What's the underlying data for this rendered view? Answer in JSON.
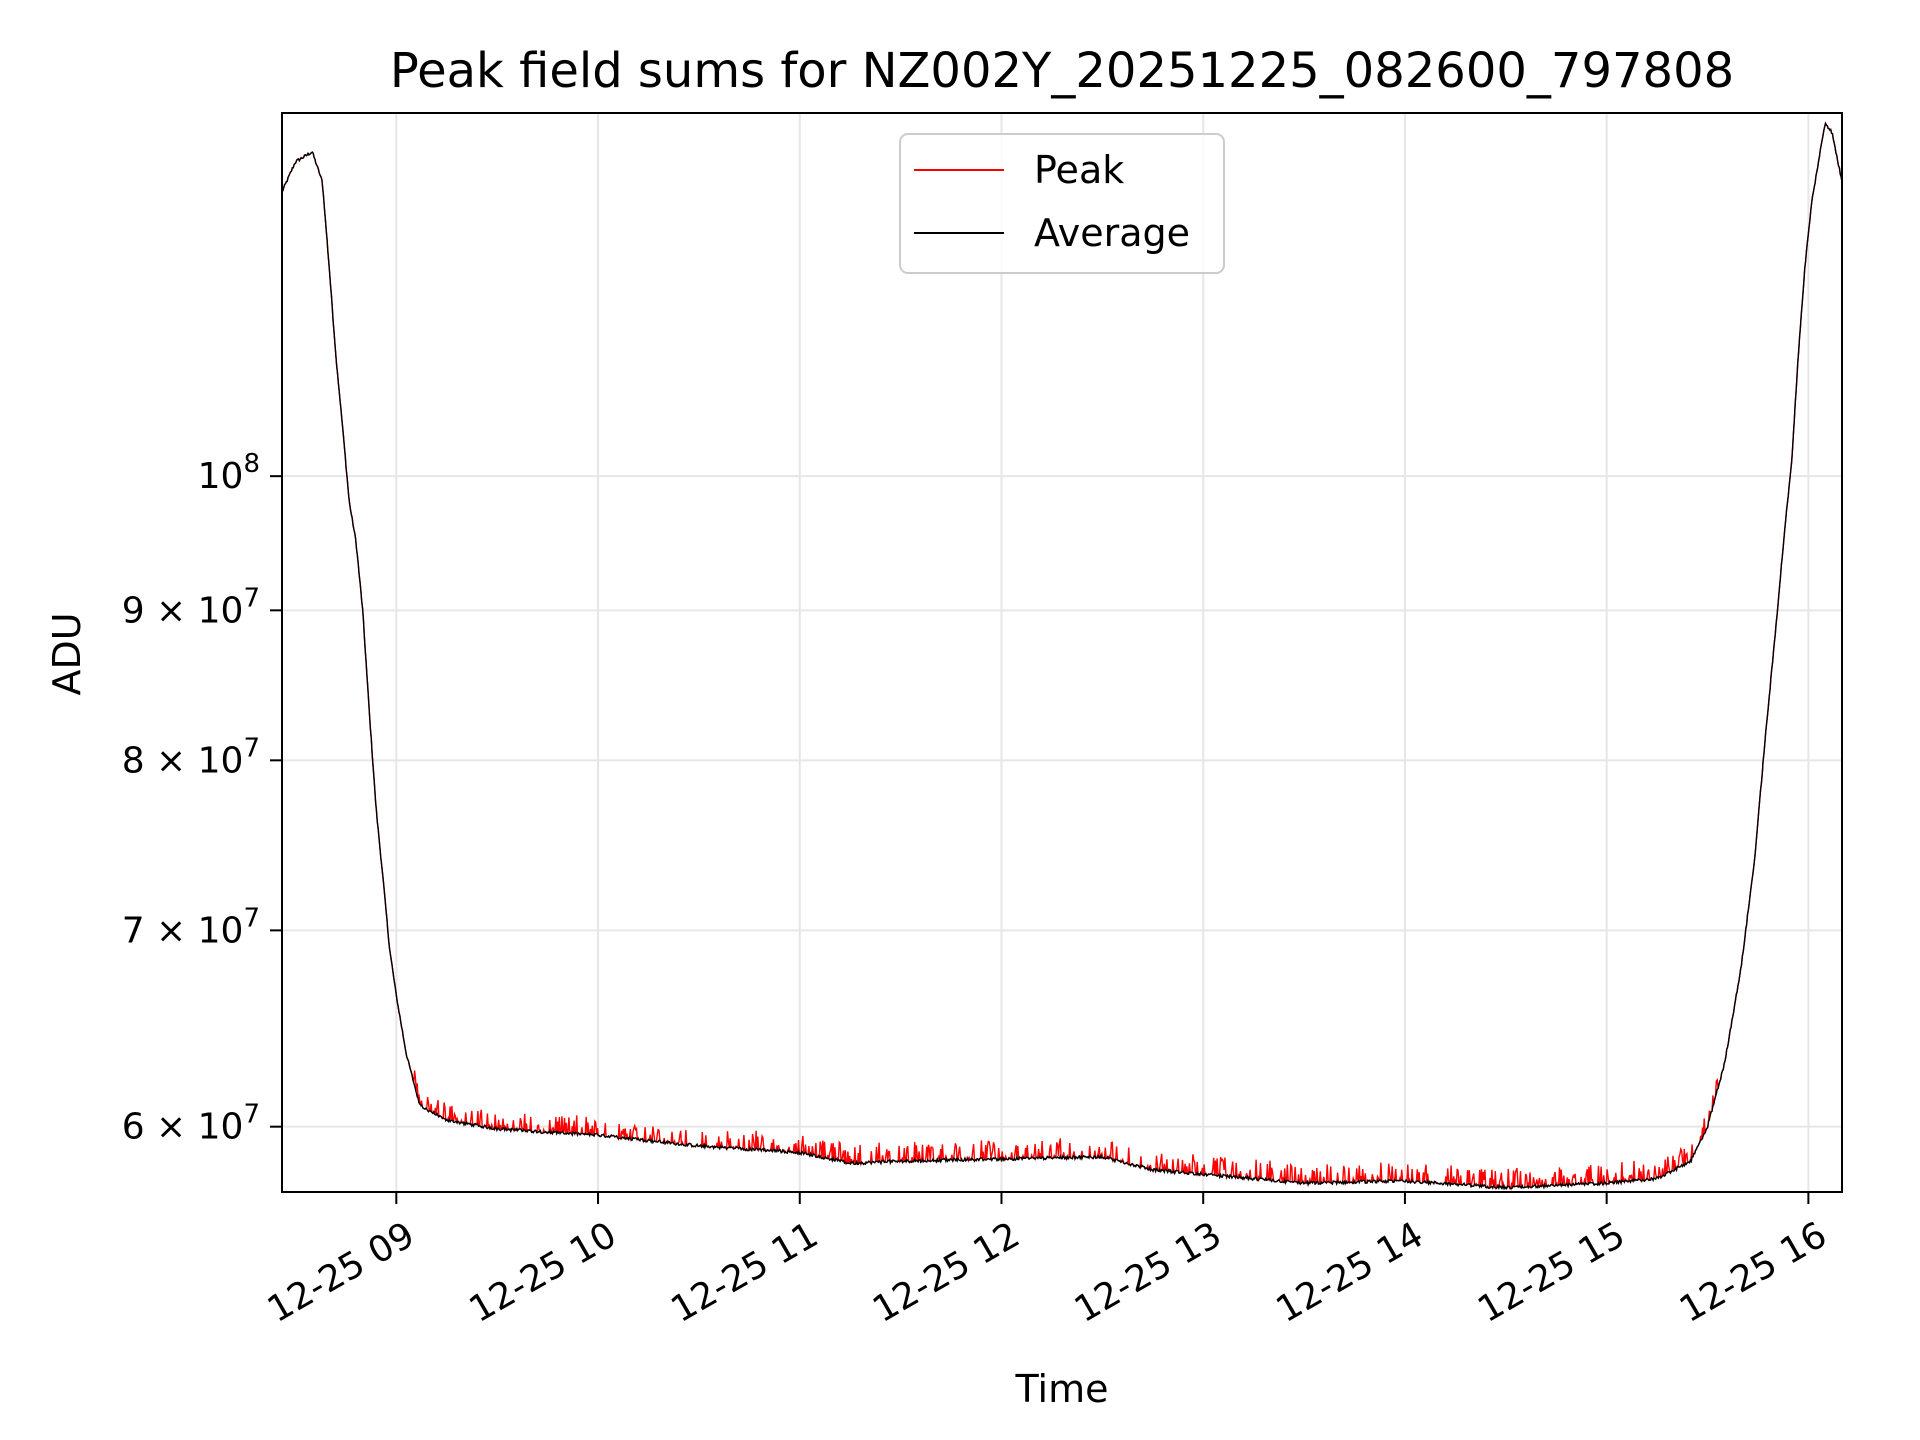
{
  "chart_data": {
    "type": "line",
    "title": "Peak field sums for NZ002Y_20251225_082600_797808",
    "xlabel": "Time",
    "ylabel": "ADU",
    "y_scale": "log",
    "grid": true,
    "legend_position": "top-center",
    "xlim": [
      "2025-12-25 08:26",
      "2025-12-25 16:10"
    ],
    "ylim": [
      57000000,
      133000000
    ],
    "x_ticks": [
      {
        "value": "2025-12-25 09:00",
        "label": "12-25 09"
      },
      {
        "value": "2025-12-25 10:00",
        "label": "12-25 10"
      },
      {
        "value": "2025-12-25 11:00",
        "label": "12-25 11"
      },
      {
        "value": "2025-12-25 12:00",
        "label": "12-25 12"
      },
      {
        "value": "2025-12-25 13:00",
        "label": "12-25 13"
      },
      {
        "value": "2025-12-25 14:00",
        "label": "12-25 14"
      },
      {
        "value": "2025-12-25 15:00",
        "label": "12-25 15"
      },
      {
        "value": "2025-12-25 16:00",
        "label": "12-25 16"
      }
    ],
    "y_ticks": [
      {
        "value": 60000000,
        "base": "6",
        "exp": "7"
      },
      {
        "value": 70000000,
        "base": "7",
        "exp": "7"
      },
      {
        "value": 80000000,
        "base": "8",
        "exp": "7"
      },
      {
        "value": 90000000,
        "base": "9",
        "exp": "7"
      },
      {
        "value": 100000000,
        "base": "",
        "exp": "8"
      }
    ],
    "x": [
      "2025-12-25 08:26",
      "2025-12-25 08:30",
      "2025-12-25 08:35",
      "2025-12-25 08:38",
      "2025-12-25 08:40",
      "2025-12-25 08:42",
      "2025-12-25 08:44",
      "2025-12-25 08:46",
      "2025-12-25 08:48",
      "2025-12-25 08:50",
      "2025-12-25 08:52",
      "2025-12-25 08:54",
      "2025-12-25 08:56",
      "2025-12-25 08:58",
      "2025-12-25 09:00",
      "2025-12-25 09:03",
      "2025-12-25 09:07",
      "2025-12-25 09:15",
      "2025-12-25 09:30",
      "2025-12-25 10:00",
      "2025-12-25 10:30",
      "2025-12-25 11:00",
      "2025-12-25 11:15",
      "2025-12-25 11:30",
      "2025-12-25 12:00",
      "2025-12-25 12:30",
      "2025-12-25 12:45",
      "2025-12-25 13:00",
      "2025-12-25 13:30",
      "2025-12-25 14:00",
      "2025-12-25 14:30",
      "2025-12-25 15:00",
      "2025-12-25 15:15",
      "2025-12-25 15:25",
      "2025-12-25 15:30",
      "2025-12-25 15:35",
      "2025-12-25 15:40",
      "2025-12-25 15:44",
      "2025-12-25 15:47",
      "2025-12-25 15:50",
      "2025-12-25 15:53",
      "2025-12-25 15:55",
      "2025-12-25 15:57",
      "2025-12-25 15:59",
      "2025-12-25 16:01",
      "2025-12-25 16:03",
      "2025-12-25 16:05",
      "2025-12-25 16:07",
      "2025-12-25 16:10"
    ],
    "series": [
      {
        "name": "Peak",
        "color": "#ff0000",
        "values": [
          125000000,
          128000000,
          129000000,
          126000000,
          118000000,
          110000000,
          104000000,
          98000000,
          95000000,
          90000000,
          83000000,
          77000000,
          73000000,
          69000000,
          66500000,
          63500000,
          61000000,
          60300000,
          59900000,
          59600000,
          59100000,
          58800000,
          58300000,
          58400000,
          58500000,
          58600000,
          58000000,
          57800000,
          57400000,
          57500000,
          57200000,
          57400000,
          57600000,
          58400000,
          60000000,
          63000000,
          68000000,
          74000000,
          81000000,
          88000000,
          96000000,
          101000000,
          110000000,
          118000000,
          124000000,
          128000000,
          132000000,
          131000000,
          126000000
        ],
        "noise_amplitude_approx": 600000
      },
      {
        "name": "Average",
        "color": "#000000",
        "values": [
          125000000,
          128000000,
          129000000,
          126000000,
          118000000,
          110000000,
          104000000,
          98000000,
          95000000,
          90000000,
          83000000,
          77000000,
          73000000,
          69000000,
          66500000,
          63500000,
          61000000,
          60300000,
          59900000,
          59600000,
          59100000,
          58800000,
          58300000,
          58400000,
          58500000,
          58600000,
          58000000,
          57800000,
          57400000,
          57500000,
          57200000,
          57400000,
          57600000,
          58400000,
          60000000,
          63000000,
          68000000,
          74000000,
          81000000,
          88000000,
          96000000,
          101000000,
          110000000,
          118000000,
          124000000,
          128000000,
          132000000,
          131000000,
          126000000
        ]
      }
    ]
  }
}
